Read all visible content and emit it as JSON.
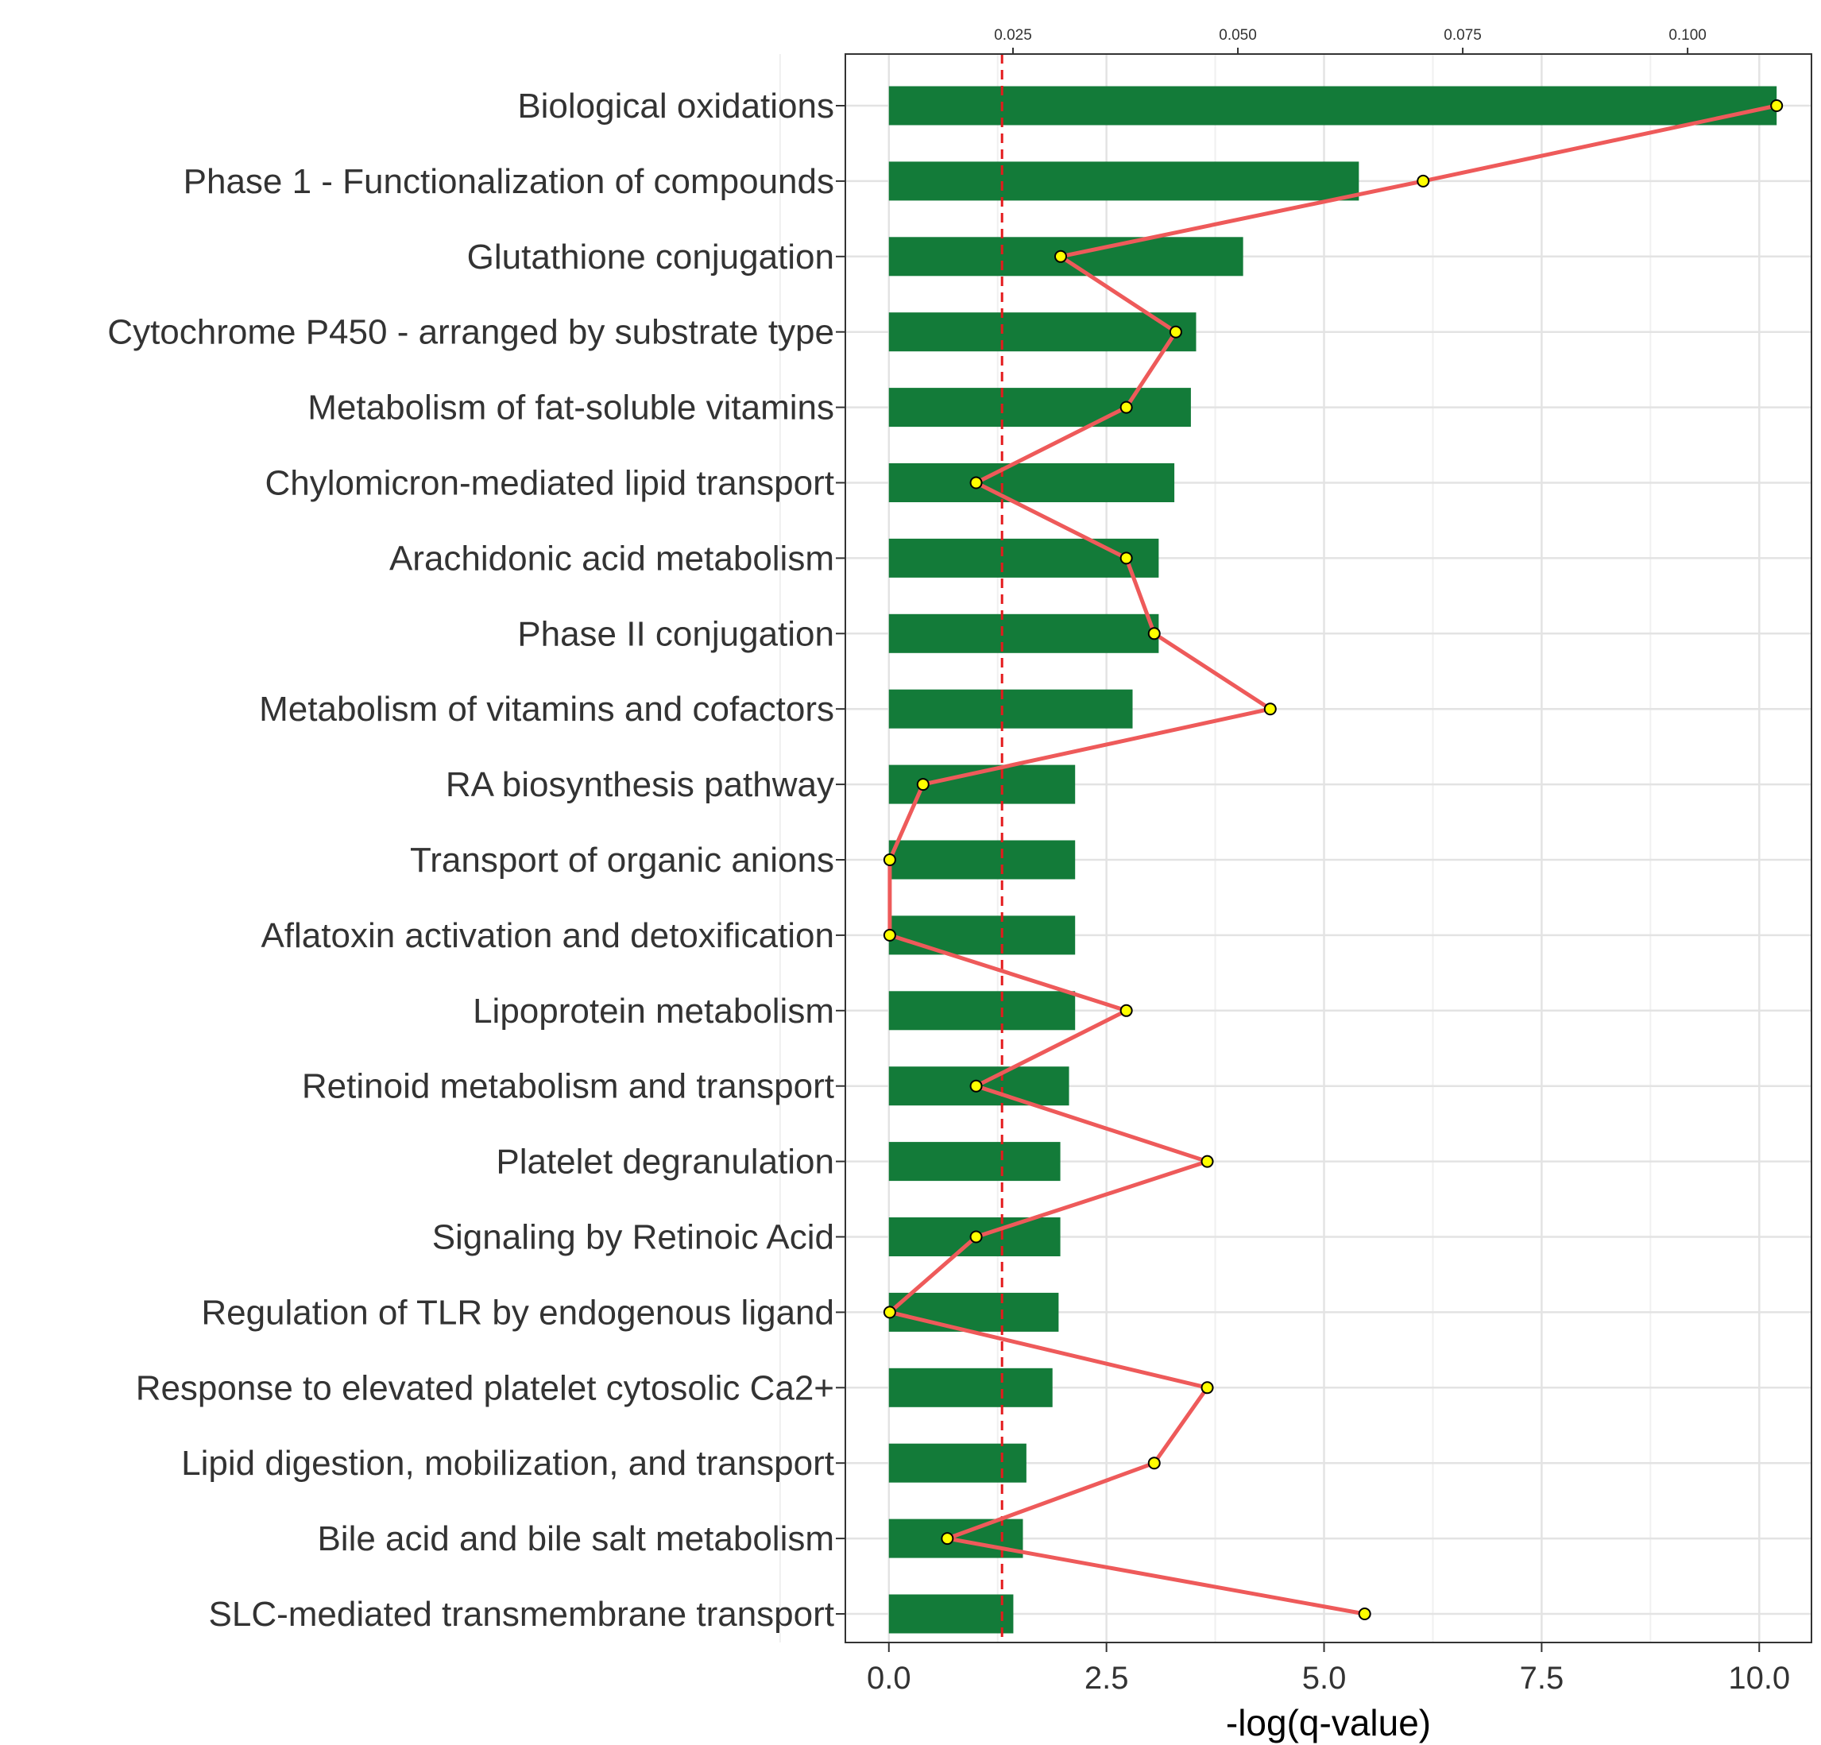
{
  "chart_data": {
    "type": "bar",
    "xlabel": "-log(q-value)",
    "xlim": [
      -0.5,
      10.6
    ],
    "x_ticks": [
      "0.0",
      "2.5",
      "5.0",
      "7.5",
      "10.0"
    ],
    "x_tick_values": [
      0,
      2.5,
      5,
      7.5,
      10
    ],
    "secondary_axis": {
      "position": "top",
      "ticks": [
        "0.025",
        "0.050",
        "0.075",
        "0.100"
      ],
      "tick_values": [
        0.025,
        0.05,
        0.075,
        0.1
      ],
      "range": [
        0.0112,
        0.1099
      ]
    },
    "grid": true,
    "threshold_line": {
      "value": 1.3,
      "color": "#e41a1c",
      "style": "dashed"
    },
    "categories": [
      "Biological oxidations",
      "Phase 1 - Functionalization of compounds",
      "Glutathione conjugation",
      "Cytochrome P450 - arranged by substrate type",
      "Metabolism of fat-soluble vitamins",
      "Chylomicron-mediated lipid transport",
      "Arachidonic acid metabolism",
      "Phase II conjugation",
      "Metabolism of vitamins and cofactors",
      "RA biosynthesis pathway",
      "Transport of organic anions",
      "Aflatoxin activation and detoxification",
      "Lipoprotein metabolism",
      "Retinoid metabolism and transport",
      "Platelet degranulation ",
      "Signaling by Retinoic Acid",
      "Regulation of TLR by endogenous ligand",
      "Response to elevated platelet cytosolic Ca2+",
      "Lipid digestion, mobilization, and transport",
      "Bile acid and bile salt metabolism",
      "SLC-mediated transmembrane transport"
    ],
    "series": [
      {
        "type": "bar",
        "color": "#137b39",
        "values": [
          10.2,
          5.4,
          4.07,
          3.53,
          3.47,
          3.28,
          3.1,
          3.1,
          2.8,
          2.14,
          2.14,
          2.14,
          2.14,
          2.07,
          1.97,
          1.97,
          1.95,
          1.88,
          1.58,
          1.54,
          1.43
        ]
      },
      {
        "type": "line",
        "color": "#ee5a5a",
        "marker_color": "#ffff00",
        "axis": "top",
        "values": [
          0.1099,
          0.0706,
          0.0303,
          0.0431,
          0.0376,
          0.0209,
          0.0376,
          0.0407,
          0.0536,
          0.015,
          0.0113,
          0.0113,
          0.0376,
          0.0209,
          0.0466,
          0.0209,
          0.0113,
          0.0466,
          0.0407,
          0.0177,
          0.0641
        ]
      }
    ]
  }
}
